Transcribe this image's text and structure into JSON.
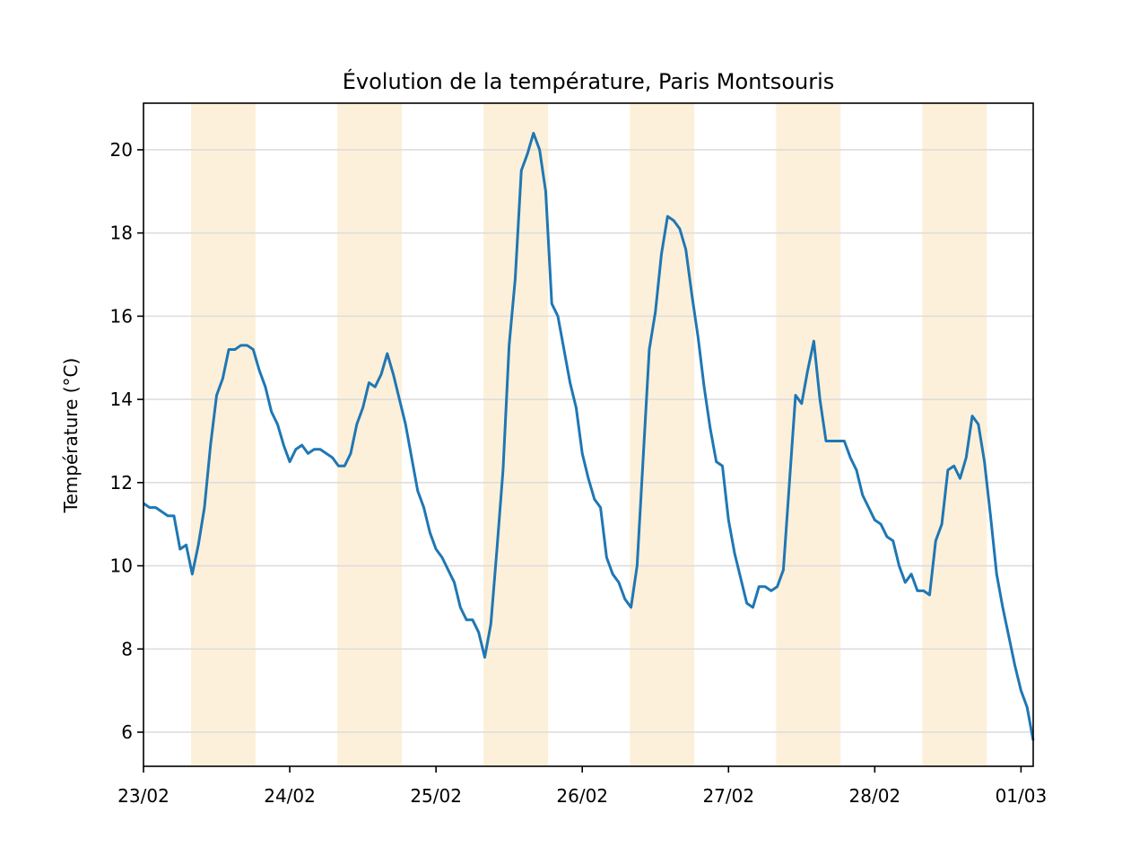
{
  "chart_data": {
    "type": "line",
    "title": "Évolution de la température, Paris Montsouris",
    "xlabel": "",
    "ylabel": "Température (°C)",
    "x_unit": "hours since 23/02 00:00",
    "xlim": [
      0,
      146
    ],
    "ylim": [
      5.18,
      21.12
    ],
    "grid": "horizontal",
    "xticks": [
      {
        "value": 0,
        "label": "23/02"
      },
      {
        "value": 24,
        "label": "24/02"
      },
      {
        "value": 48,
        "label": "25/02"
      },
      {
        "value": 72,
        "label": "26/02"
      },
      {
        "value": 96,
        "label": "27/02"
      },
      {
        "value": 120,
        "label": "28/02"
      },
      {
        "value": 144,
        "label": "01/03"
      }
    ],
    "yticks": [
      {
        "value": 6,
        "label": "6"
      },
      {
        "value": 8,
        "label": "8"
      },
      {
        "value": 10,
        "label": "10"
      },
      {
        "value": 12,
        "label": "12"
      },
      {
        "value": 14,
        "label": "14"
      },
      {
        "value": 16,
        "label": "16"
      },
      {
        "value": 18,
        "label": "18"
      },
      {
        "value": 20,
        "label": "20"
      }
    ],
    "daylight_bands": [
      [
        7.8,
        18.4
      ],
      [
        31.8,
        42.4
      ],
      [
        55.8,
        66.4
      ],
      [
        79.8,
        90.4
      ],
      [
        103.8,
        114.4
      ],
      [
        127.8,
        138.4
      ]
    ],
    "series": [
      {
        "name": "Température",
        "color": "#1f77b4",
        "values": [
          11.5,
          11.4,
          11.4,
          11.3,
          11.2,
          11.2,
          10.4,
          10.5,
          9.8,
          10.5,
          11.4,
          12.9,
          14.1,
          14.5,
          15.2,
          15.2,
          15.3,
          15.3,
          15.2,
          14.7,
          14.3,
          13.7,
          13.4,
          12.9,
          12.5,
          12.8,
          12.9,
          12.7,
          12.8,
          12.8,
          12.7,
          12.6,
          12.4,
          12.4,
          12.7,
          13.4,
          13.8,
          14.4,
          14.3,
          14.6,
          15.1,
          14.6,
          14.0,
          13.4,
          12.6,
          11.8,
          11.4,
          10.8,
          10.4,
          10.2,
          9.9,
          9.6,
          9.0,
          8.7,
          8.7,
          8.4,
          7.8,
          8.6,
          10.4,
          12.3,
          15.3,
          16.9,
          19.5,
          19.9,
          20.4,
          20.0,
          19.0,
          16.3,
          16.0,
          15.2,
          14.4,
          13.8,
          12.7,
          12.1,
          11.6,
          11.4,
          10.2,
          9.8,
          9.6,
          9.2,
          9.0,
          10.0,
          12.6,
          15.2,
          16.1,
          17.5,
          18.4,
          18.3,
          18.1,
          17.6,
          16.5,
          15.5,
          14.3,
          13.3,
          12.5,
          12.4,
          11.1,
          10.3,
          9.7,
          9.1,
          9.0,
          9.5,
          9.5,
          9.4,
          9.5,
          9.9,
          12.0,
          14.1,
          13.9,
          14.7,
          15.4,
          14.0,
          13.0,
          13.0,
          13.0,
          13.0,
          12.6,
          12.3,
          11.7,
          11.4,
          11.1,
          11.0,
          10.7,
          10.6,
          10.0,
          9.6,
          9.8,
          9.4,
          9.4,
          9.3,
          10.6,
          11.0,
          12.3,
          12.4,
          12.1,
          12.6,
          13.6,
          13.4,
          12.5,
          11.2,
          9.8,
          9.0,
          8.3,
          7.6,
          7.0,
          6.6,
          5.8
        ]
      }
    ],
    "band_color": "#fdf0da",
    "grid_color": "#dddddd"
  }
}
